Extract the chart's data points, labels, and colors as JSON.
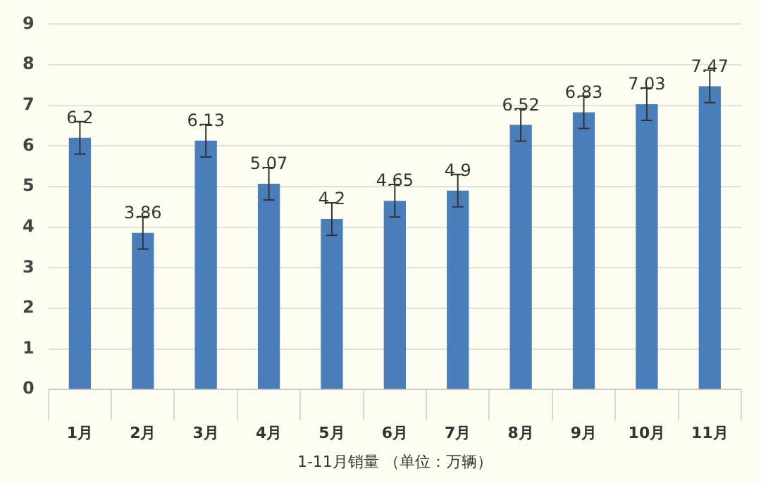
{
  "chart_data": {
    "type": "bar",
    "xlabel": "1-11月销量 （单位：万辆）",
    "categories": [
      "1月",
      "2月",
      "3月",
      "4月",
      "5月",
      "6月",
      "7月",
      "8月",
      "9月",
      "10月",
      "11月"
    ],
    "values": [
      6.2,
      3.86,
      6.13,
      5.07,
      4.2,
      4.65,
      4.9,
      6.52,
      6.83,
      7.03,
      7.47
    ],
    "errors": [
      0.4,
      0.4,
      0.4,
      0.4,
      0.4,
      0.4,
      0.4,
      0.4,
      0.4,
      0.4,
      0.4
    ],
    "color": "#4a7ebb",
    "ylim": [
      0,
      9
    ],
    "yticks": [
      0,
      1,
      2,
      3,
      4,
      5,
      6,
      7,
      8,
      9
    ],
    "grid": "y",
    "data_labels": true,
    "legend": false
  }
}
